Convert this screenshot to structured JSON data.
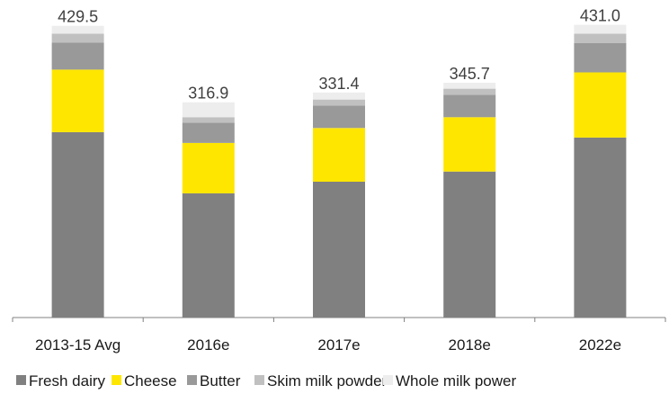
{
  "chart_data": {
    "type": "bar",
    "stacked": true,
    "title": "",
    "xlabel": "",
    "ylabel": "",
    "ylim": [
      0,
      450
    ],
    "grid": false,
    "legend_position": "bottom",
    "categories": [
      "2013-15 Avg",
      "2016e",
      "2017e",
      "2018e",
      "2022e"
    ],
    "totals": [
      "429.5",
      "316.9",
      "331.4",
      "345.7",
      "431.0"
    ],
    "series": [
      {
        "name": "Fresh dairy",
        "color": "#808080",
        "values": [
          273,
          183,
          200,
          215,
          265
        ]
      },
      {
        "name": "Cheese",
        "color": "#FFE600",
        "values": [
          92,
          74,
          79,
          80,
          96
        ]
      },
      {
        "name": "Butter",
        "color": "#999999",
        "values": [
          40,
          30,
          33,
          33,
          43
        ]
      },
      {
        "name": "Skim milk powder",
        "color": "#C0C0C0",
        "values": [
          13,
          8,
          9,
          9,
          14
        ]
      },
      {
        "name": "Whole milk power",
        "color": "#EDEDED",
        "values": [
          11.5,
          21.9,
          10.4,
          8.7,
          13
        ]
      }
    ]
  }
}
